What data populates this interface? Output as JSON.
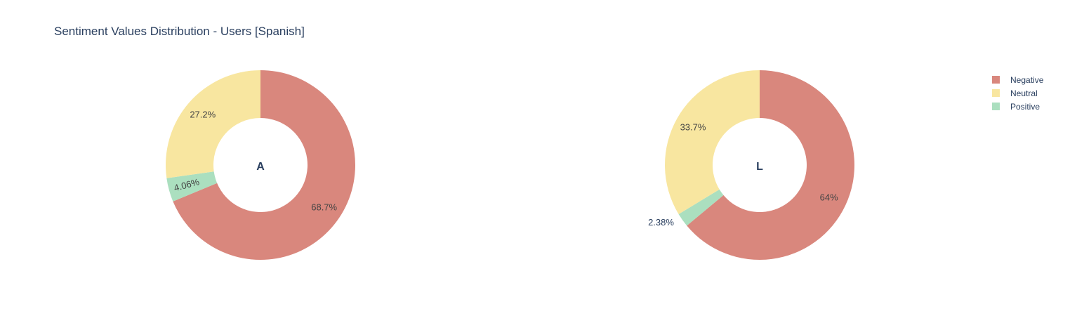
{
  "chart_data": {
    "type": "pie",
    "title": "Sentiment Values Distribution - Users [Spanish]",
    "legend": {
      "placement": "top-right",
      "items": [
        {
          "name": "Negative",
          "color": "#d9877d"
        },
        {
          "name": "Neutral",
          "color": "#f8e6a0"
        },
        {
          "name": "Positive",
          "color": "#abdfbf"
        }
      ]
    },
    "charts": [
      {
        "center_label": "A",
        "slices": [
          {
            "name": "Negative",
            "value": 68.7,
            "label": "68.7%",
            "color": "#d9877d"
          },
          {
            "name": "Positive",
            "value": 4.06,
            "label": "4.06%",
            "color": "#abdfbf"
          },
          {
            "name": "Neutral",
            "value": 27.2,
            "label": "27.2%",
            "color": "#f8e6a0"
          }
        ]
      },
      {
        "center_label": "L",
        "slices": [
          {
            "name": "Negative",
            "value": 64,
            "label": "64%",
            "color": "#d9877d"
          },
          {
            "name": "Positive",
            "value": 2.38,
            "label": "2.38%",
            "color": "#abdfbf"
          },
          {
            "name": "Neutral",
            "value": 33.7,
            "label": "33.7%",
            "color": "#f8e6a0"
          }
        ]
      }
    ]
  }
}
